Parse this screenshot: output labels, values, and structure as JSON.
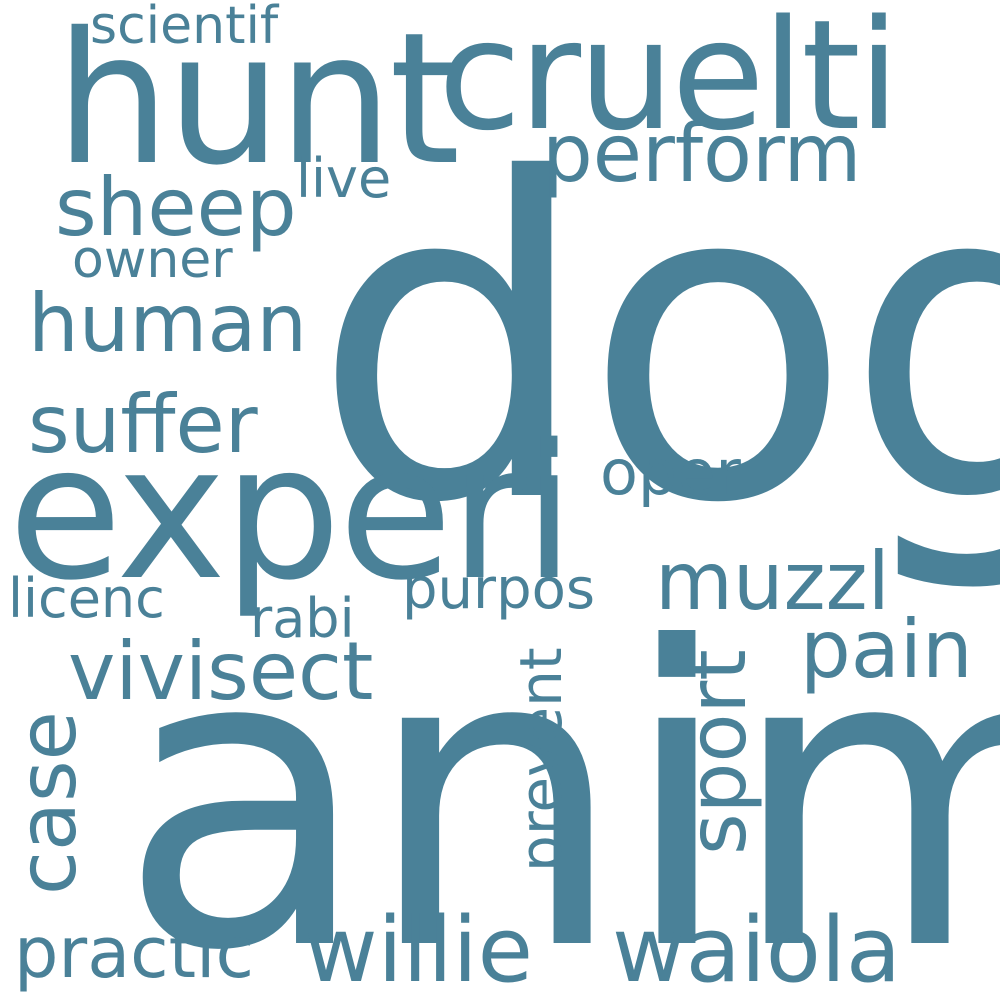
{
  "cloud": {
    "color": "#4a8198",
    "background": "#ffffff",
    "words": [
      {
        "text": "dog",
        "orientation": "horizontal"
      },
      {
        "text": "anim",
        "orientation": "horizontal"
      },
      {
        "text": "experi",
        "orientation": "horizontal"
      },
      {
        "text": "hunt",
        "orientation": "horizontal"
      },
      {
        "text": "cruelti",
        "orientation": "horizontal"
      },
      {
        "text": "willie",
        "orientation": "horizontal"
      },
      {
        "text": "waiola",
        "orientation": "horizontal"
      },
      {
        "text": "vivisect",
        "orientation": "horizontal"
      },
      {
        "text": "perform",
        "orientation": "horizontal"
      },
      {
        "text": "sheep",
        "orientation": "horizontal"
      },
      {
        "text": "human",
        "orientation": "horizontal"
      },
      {
        "text": "suffer",
        "orientation": "horizontal"
      },
      {
        "text": "muzzl",
        "orientation": "horizontal"
      },
      {
        "text": "pain",
        "orientation": "horizontal"
      },
      {
        "text": "practic",
        "orientation": "horizontal"
      },
      {
        "text": "sport",
        "orientation": "vertical"
      },
      {
        "text": "case",
        "orientation": "vertical"
      },
      {
        "text": "oper",
        "orientation": "horizontal"
      },
      {
        "text": "purpos",
        "orientation": "horizontal"
      },
      {
        "text": "prevent",
        "orientation": "vertical"
      },
      {
        "text": "scientif",
        "orientation": "horizontal"
      },
      {
        "text": "live",
        "orientation": "horizontal"
      },
      {
        "text": "owner",
        "orientation": "horizontal"
      },
      {
        "text": "licenc",
        "orientation": "horizontal"
      },
      {
        "text": "rabi",
        "orientation": "horizontal"
      }
    ]
  }
}
